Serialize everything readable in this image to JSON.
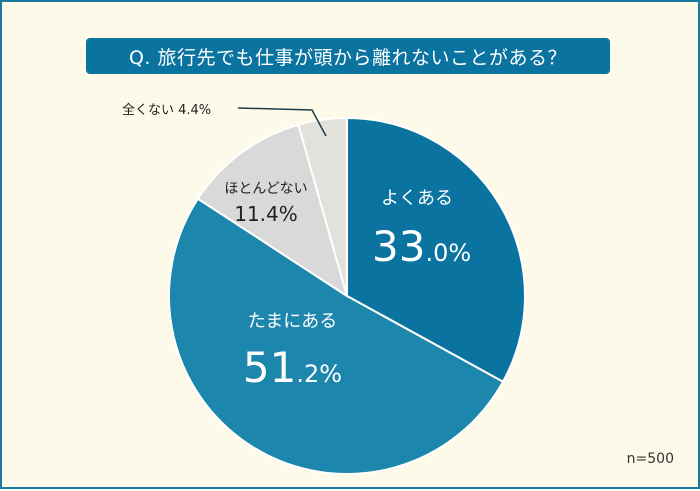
{
  "title": "Q. 旅行先でも仕事が頭から離れないことがある？",
  "sample": "n=500",
  "colors": {
    "background": "#fefaea",
    "border": "#1a7aa0",
    "title_bg": "#0a73a0",
    "slice_often": "#0a73a0",
    "slice_sometimes": "#1d86ad",
    "slice_rarely": "#d9d9d9",
    "slice_never": "#e2e1dc"
  },
  "labels": {
    "often": {
      "cat": "よくある",
      "int": "33",
      "dec": ".0%"
    },
    "sometimes": {
      "cat": "たまにある",
      "int": "51",
      "dec": ".2%"
    },
    "rarely": {
      "cat": "ほとんどない",
      "val": "11.4%"
    },
    "never": {
      "text": "全くない 4.4%"
    }
  },
  "chart_data": {
    "type": "pie",
    "title": "Q. 旅行先でも仕事が頭から離れないことがある？",
    "categories": [
      "よくある",
      "たまにある",
      "ほとんどない",
      "全くない"
    ],
    "values": [
      33.0,
      51.2,
      11.4,
      4.4
    ],
    "unit": "%",
    "n": 500,
    "start_angle": "12 o'clock, clockwise"
  }
}
